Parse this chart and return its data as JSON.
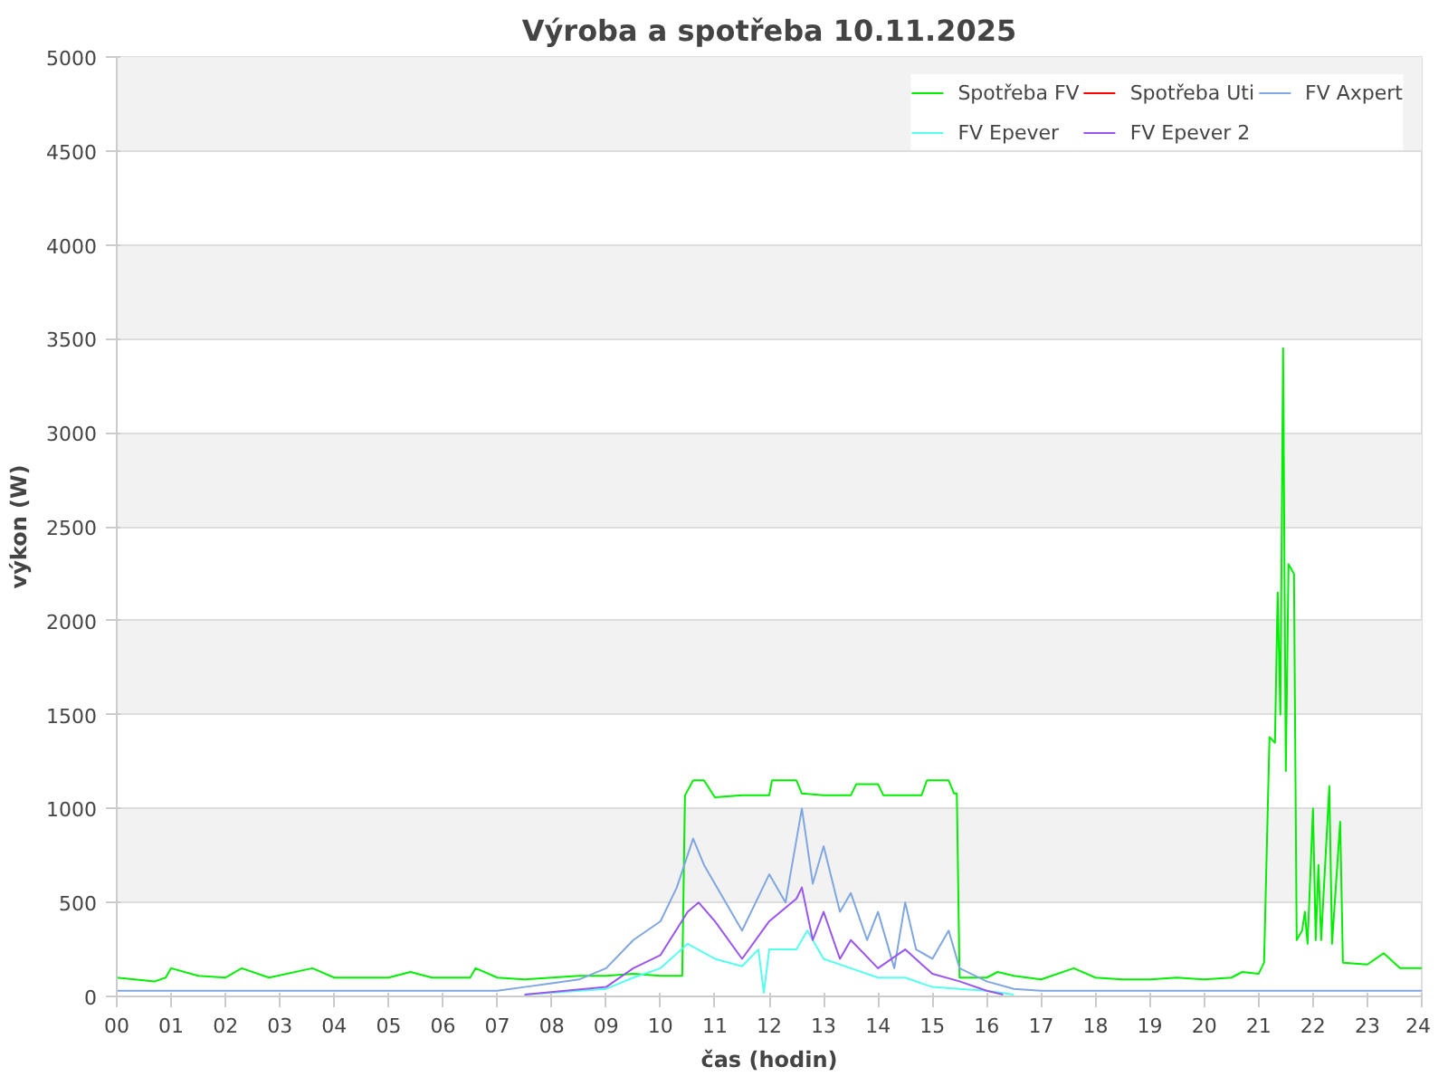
{
  "chart_data": {
    "type": "line",
    "title": "Výroba a spotřeba 10.11.2025",
    "xlabel": "čas (hodin)",
    "ylabel": "výkon (W)",
    "xlim": [
      0,
      24
    ],
    "ylim": [
      0,
      5000
    ],
    "xticks": [
      {
        "value": 0,
        "label": "00"
      },
      {
        "value": 1,
        "label": "01"
      },
      {
        "value": 2,
        "label": "02"
      },
      {
        "value": 3,
        "label": "03"
      },
      {
        "value": 4,
        "label": "04"
      },
      {
        "value": 5,
        "label": "05"
      },
      {
        "value": 6,
        "label": "06"
      },
      {
        "value": 7,
        "label": "07"
      },
      {
        "value": 8,
        "label": "08"
      },
      {
        "value": 9,
        "label": "09"
      },
      {
        "value": 10,
        "label": "10"
      },
      {
        "value": 11,
        "label": "11"
      },
      {
        "value": 12,
        "label": "12"
      },
      {
        "value": 13,
        "label": "13"
      },
      {
        "value": 14,
        "label": "14"
      },
      {
        "value": 15,
        "label": "15"
      },
      {
        "value": 16,
        "label": "16"
      },
      {
        "value": 17,
        "label": "17"
      },
      {
        "value": 18,
        "label": "18"
      },
      {
        "value": 19,
        "label": "19"
      },
      {
        "value": 20,
        "label": "20"
      },
      {
        "value": 21,
        "label": "21"
      },
      {
        "value": 22,
        "label": "22"
      },
      {
        "value": 23,
        "label": "23"
      },
      {
        "value": 24,
        "label": "24"
      }
    ],
    "yticks": [
      0,
      500,
      1000,
      1500,
      2000,
      2500,
      3000,
      3500,
      4000,
      4500,
      5000
    ],
    "grid": "y",
    "legend": "top right",
    "marker": "none",
    "line_style": "solid",
    "series": [
      {
        "name": "Spotřeba FV",
        "color": "#00ee00",
        "x": [
          0,
          0.7,
          0.9,
          1.0,
          1.5,
          2.0,
          2.3,
          2.8,
          3.6,
          4.0,
          5.0,
          5.4,
          5.8,
          6.5,
          6.6,
          7.0,
          7.5,
          8.0,
          8.5,
          9.0,
          9.5,
          10.0,
          10.4,
          10.45,
          10.6,
          10.8,
          11.0,
          11.5,
          12.0,
          12.05,
          12.5,
          12.6,
          13.0,
          13.5,
          13.6,
          14.0,
          14.1,
          14.8,
          14.9,
          15.3,
          15.4,
          15.45,
          15.5,
          16.0,
          16.2,
          16.5,
          17.0,
          17.6,
          18.0,
          18.5,
          19.0,
          19.5,
          20.0,
          20.5,
          20.7,
          21.0,
          21.1,
          21.2,
          21.3,
          21.35,
          21.4,
          21.45,
          21.5,
          21.55,
          21.65,
          21.7,
          21.8,
          21.85,
          21.9,
          22.0,
          22.05,
          22.1,
          22.15,
          22.3,
          22.35,
          22.5,
          22.55,
          23.0,
          23.3,
          23.6,
          24.0
        ],
        "values": [
          100,
          80,
          100,
          150,
          110,
          100,
          150,
          100,
          150,
          100,
          100,
          130,
          100,
          100,
          150,
          100,
          90,
          100,
          110,
          110,
          120,
          110,
          110,
          1070,
          1150,
          1150,
          1060,
          1070,
          1070,
          1150,
          1150,
          1080,
          1070,
          1070,
          1130,
          1130,
          1070,
          1070,
          1150,
          1150,
          1080,
          1080,
          100,
          100,
          130,
          110,
          90,
          150,
          100,
          90,
          90,
          100,
          90,
          100,
          130,
          120,
          180,
          1380,
          1350,
          2150,
          1500,
          3450,
          1200,
          2300,
          2250,
          300,
          350,
          450,
          280,
          1000,
          300,
          700,
          300,
          1120,
          280,
          930,
          180,
          170,
          230,
          150,
          150
        ]
      },
      {
        "name": "Spotřeba Uti",
        "color": "#ff0000"
      },
      {
        "name": "FV Axpert",
        "color": "#7fa6e0",
        "x": [
          0,
          7,
          7.5,
          8,
          8.5,
          9,
          9.5,
          10,
          10.3,
          10.6,
          10.8,
          11,
          11.5,
          12,
          12.3,
          12.6,
          12.8,
          13,
          13.3,
          13.5,
          13.8,
          14,
          14.3,
          14.5,
          14.7,
          15,
          15.3,
          15.5,
          16,
          16.5,
          17,
          24
        ],
        "values": [
          30,
          30,
          50,
          70,
          90,
          150,
          300,
          400,
          580,
          840,
          700,
          600,
          350,
          650,
          500,
          1000,
          600,
          800,
          450,
          550,
          300,
          450,
          150,
          500,
          250,
          200,
          350,
          150,
          80,
          40,
          30,
          30
        ]
      },
      {
        "name": "FV Epever",
        "color": "#55ffee",
        "x": [
          7.5,
          9,
          9.5,
          10,
          10.5,
          11,
          11.5,
          11.8,
          11.9,
          12,
          12.5,
          12.7,
          13,
          13.5,
          14,
          14.5,
          15,
          15.5,
          16,
          16.5
        ],
        "values": [
          10,
          40,
          100,
          150,
          280,
          200,
          160,
          250,
          20,
          250,
          250,
          350,
          200,
          150,
          100,
          100,
          50,
          40,
          30,
          10
        ]
      },
      {
        "name": "FV Epever 2",
        "color": "#9955ee",
        "x": [
          7.5,
          9,
          9.5,
          10,
          10.5,
          10.7,
          11,
          11.5,
          12,
          12.5,
          12.6,
          12.8,
          13,
          13.3,
          13.5,
          14,
          14.5,
          15,
          15.5,
          16,
          16.3
        ],
        "values": [
          10,
          50,
          150,
          220,
          450,
          500,
          400,
          200,
          400,
          520,
          580,
          300,
          450,
          200,
          300,
          150,
          250,
          120,
          80,
          30,
          10
        ]
      }
    ]
  }
}
